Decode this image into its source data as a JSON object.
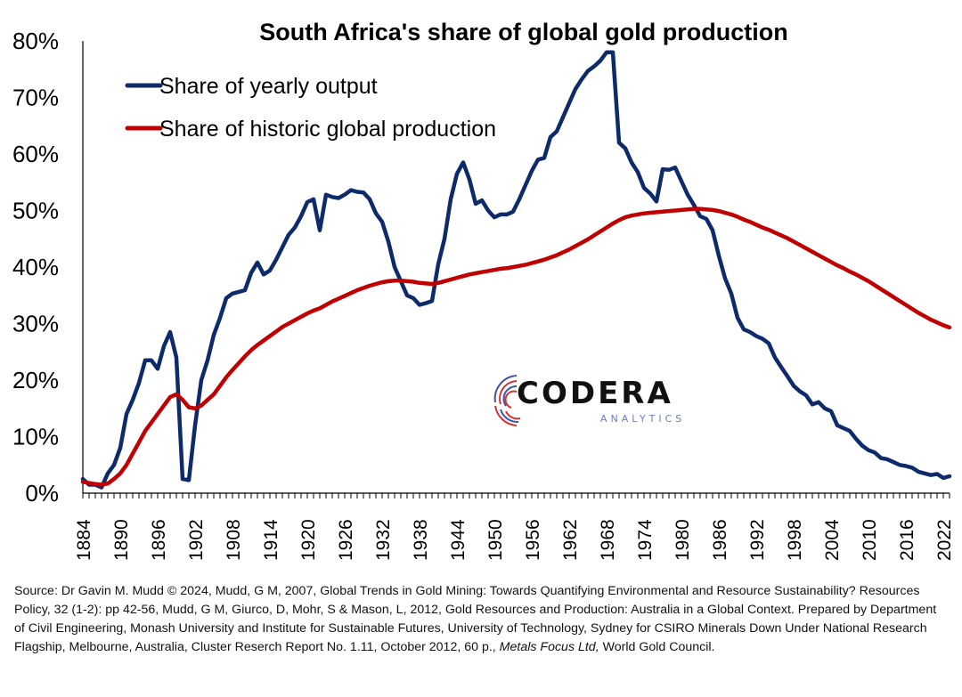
{
  "chart_data": {
    "type": "line",
    "title": "South Africa's share of global gold production",
    "y_ticks": [
      "0%",
      "10%",
      "20%",
      "30%",
      "40%",
      "50%",
      "60%",
      "70%",
      "80%"
    ],
    "ylim": [
      0,
      80
    ],
    "xlim": [
      1884,
      2023
    ],
    "x_ticks": [
      "1884",
      "1890",
      "1896",
      "1902",
      "1908",
      "1914",
      "1920",
      "1926",
      "1932",
      "1938",
      "1944",
      "1950",
      "1956",
      "1962",
      "1968",
      "1974",
      "1980",
      "1986",
      "1992",
      "1998",
      "2004",
      "2010",
      "2016",
      "2022"
    ],
    "grid": false,
    "legend_position": "top-left",
    "series": [
      {
        "name": "Share of yearly output",
        "color": "#0d2a6b",
        "points": [
          [
            1884,
            2.5
          ],
          [
            1885,
            1.5
          ],
          [
            1886,
            1.5
          ],
          [
            1887,
            1.0
          ],
          [
            1888,
            3.5
          ],
          [
            1889,
            5.0
          ],
          [
            1890,
            8.0
          ],
          [
            1891,
            14.0
          ],
          [
            1892,
            16.5
          ],
          [
            1893,
            19.5
          ],
          [
            1894,
            23.5
          ],
          [
            1895,
            23.5
          ],
          [
            1896,
            22.0
          ],
          [
            1897,
            26.0
          ],
          [
            1898,
            28.5
          ],
          [
            1899,
            24.0
          ],
          [
            1900,
            2.5
          ],
          [
            1901,
            2.3
          ],
          [
            1902,
            12.0
          ],
          [
            1903,
            20.0
          ],
          [
            1904,
            23.5
          ],
          [
            1905,
            28.0
          ],
          [
            1906,
            31.0
          ],
          [
            1907,
            34.5
          ],
          [
            1908,
            35.3
          ],
          [
            1909,
            35.6
          ],
          [
            1910,
            35.9
          ],
          [
            1911,
            39.0
          ],
          [
            1912,
            40.8
          ],
          [
            1913,
            38.7
          ],
          [
            1914,
            39.4
          ],
          [
            1915,
            41.3
          ],
          [
            1916,
            43.5
          ],
          [
            1917,
            45.7
          ],
          [
            1918,
            47.0
          ],
          [
            1919,
            49.0
          ],
          [
            1920,
            51.5
          ],
          [
            1921,
            52.0
          ],
          [
            1922,
            46.5
          ],
          [
            1923,
            52.8
          ],
          [
            1924,
            52.4
          ],
          [
            1925,
            52.2
          ],
          [
            1926,
            52.8
          ],
          [
            1927,
            53.6
          ],
          [
            1928,
            53.3
          ],
          [
            1929,
            53.2
          ],
          [
            1930,
            52.0
          ],
          [
            1931,
            49.5
          ],
          [
            1932,
            48.0
          ],
          [
            1933,
            44.5
          ],
          [
            1934,
            40.0
          ],
          [
            1935,
            37.5
          ],
          [
            1936,
            35.0
          ],
          [
            1937,
            34.5
          ],
          [
            1938,
            33.3
          ],
          [
            1939,
            33.6
          ],
          [
            1940,
            34.0
          ],
          [
            1941,
            40.5
          ],
          [
            1942,
            45.0
          ],
          [
            1943,
            52.0
          ],
          [
            1944,
            56.5
          ],
          [
            1945,
            58.5
          ],
          [
            1946,
            55.5
          ],
          [
            1947,
            51.2
          ],
          [
            1948,
            51.8
          ],
          [
            1949,
            50.0
          ],
          [
            1950,
            48.8
          ],
          [
            1951,
            49.3
          ],
          [
            1952,
            49.3
          ],
          [
            1953,
            49.8
          ],
          [
            1954,
            52.0
          ],
          [
            1955,
            54.5
          ],
          [
            1956,
            57.0
          ],
          [
            1957,
            59.0
          ],
          [
            1958,
            59.3
          ],
          [
            1959,
            63.0
          ],
          [
            1960,
            64.0
          ],
          [
            1961,
            66.5
          ],
          [
            1962,
            69.0
          ],
          [
            1963,
            71.5
          ],
          [
            1964,
            73.2
          ],
          [
            1965,
            74.7
          ],
          [
            1966,
            75.5
          ],
          [
            1967,
            76.5
          ],
          [
            1968,
            78.0
          ],
          [
            1969,
            78.0
          ],
          [
            1970,
            62.0
          ],
          [
            1971,
            61.0
          ],
          [
            1972,
            58.5
          ],
          [
            1973,
            56.8
          ],
          [
            1974,
            54.0
          ],
          [
            1975,
            53.0
          ],
          [
            1976,
            51.6
          ],
          [
            1977,
            57.3
          ],
          [
            1978,
            57.2
          ],
          [
            1979,
            57.6
          ],
          [
            1980,
            55.2
          ],
          [
            1981,
            52.8
          ],
          [
            1982,
            51.0
          ],
          [
            1983,
            49.0
          ],
          [
            1984,
            48.5
          ],
          [
            1985,
            46.5
          ],
          [
            1986,
            42.0
          ],
          [
            1987,
            38.0
          ],
          [
            1988,
            35.3
          ],
          [
            1989,
            31.0
          ],
          [
            1990,
            29.0
          ],
          [
            1991,
            28.5
          ],
          [
            1992,
            27.8
          ],
          [
            1993,
            27.3
          ],
          [
            1994,
            26.5
          ],
          [
            1995,
            24.0
          ],
          [
            1996,
            22.3
          ],
          [
            1997,
            20.7
          ],
          [
            1998,
            19.0
          ],
          [
            1999,
            18.0
          ],
          [
            2000,
            17.3
          ],
          [
            2001,
            15.7
          ],
          [
            2002,
            16.1
          ],
          [
            2003,
            15.0
          ],
          [
            2004,
            14.5
          ],
          [
            2005,
            12.0
          ],
          [
            2006,
            11.5
          ],
          [
            2007,
            11.0
          ],
          [
            2008,
            9.6
          ],
          [
            2009,
            8.4
          ],
          [
            2010,
            7.6
          ],
          [
            2011,
            7.2
          ],
          [
            2012,
            6.2
          ],
          [
            2013,
            6.0
          ],
          [
            2014,
            5.5
          ],
          [
            2015,
            5.0
          ],
          [
            2016,
            4.8
          ],
          [
            2017,
            4.5
          ],
          [
            2018,
            3.8
          ],
          [
            2019,
            3.5
          ],
          [
            2020,
            3.2
          ],
          [
            2021,
            3.4
          ],
          [
            2022,
            2.7
          ],
          [
            2023,
            3.0
          ]
        ]
      },
      {
        "name": "Share of historic global production",
        "color": "#c00000",
        "points": [
          [
            1884,
            2.0
          ],
          [
            1886,
            1.6
          ],
          [
            1887,
            1.5
          ],
          [
            1888,
            1.7
          ],
          [
            1889,
            2.5
          ],
          [
            1890,
            3.5
          ],
          [
            1891,
            5.0
          ],
          [
            1892,
            7.0
          ],
          [
            1893,
            9.0
          ],
          [
            1894,
            11.0
          ],
          [
            1895,
            12.5
          ],
          [
            1896,
            14.0
          ],
          [
            1897,
            15.5
          ],
          [
            1898,
            17.0
          ],
          [
            1899,
            17.5
          ],
          [
            1900,
            16.5
          ],
          [
            1901,
            15.2
          ],
          [
            1902,
            15.0
          ],
          [
            1903,
            15.5
          ],
          [
            1904,
            16.5
          ],
          [
            1905,
            17.5
          ],
          [
            1906,
            19.0
          ],
          [
            1907,
            20.5
          ],
          [
            1908,
            21.8
          ],
          [
            1909,
            23.0
          ],
          [
            1910,
            24.2
          ],
          [
            1911,
            25.3
          ],
          [
            1912,
            26.2
          ],
          [
            1913,
            27.0
          ],
          [
            1914,
            27.8
          ],
          [
            1915,
            28.6
          ],
          [
            1916,
            29.4
          ],
          [
            1917,
            30.0
          ],
          [
            1918,
            30.6
          ],
          [
            1919,
            31.2
          ],
          [
            1920,
            31.8
          ],
          [
            1921,
            32.3
          ],
          [
            1922,
            32.7
          ],
          [
            1923,
            33.3
          ],
          [
            1924,
            33.9
          ],
          [
            1925,
            34.4
          ],
          [
            1926,
            34.9
          ],
          [
            1927,
            35.4
          ],
          [
            1928,
            35.9
          ],
          [
            1929,
            36.3
          ],
          [
            1930,
            36.7
          ],
          [
            1931,
            37.0
          ],
          [
            1932,
            37.3
          ],
          [
            1933,
            37.5
          ],
          [
            1934,
            37.6
          ],
          [
            1935,
            37.6
          ],
          [
            1936,
            37.5
          ],
          [
            1937,
            37.4
          ],
          [
            1938,
            37.2
          ],
          [
            1939,
            37.1
          ],
          [
            1940,
            37.0
          ],
          [
            1941,
            37.2
          ],
          [
            1942,
            37.5
          ],
          [
            1943,
            37.8
          ],
          [
            1944,
            38.1
          ],
          [
            1945,
            38.4
          ],
          [
            1946,
            38.7
          ],
          [
            1947,
            38.9
          ],
          [
            1948,
            39.1
          ],
          [
            1949,
            39.3
          ],
          [
            1950,
            39.5
          ],
          [
            1951,
            39.7
          ],
          [
            1952,
            39.8
          ],
          [
            1953,
            40.0
          ],
          [
            1954,
            40.2
          ],
          [
            1955,
            40.4
          ],
          [
            1956,
            40.7
          ],
          [
            1957,
            41.0
          ],
          [
            1958,
            41.3
          ],
          [
            1959,
            41.7
          ],
          [
            1960,
            42.1
          ],
          [
            1961,
            42.6
          ],
          [
            1962,
            43.1
          ],
          [
            1963,
            43.7
          ],
          [
            1964,
            44.3
          ],
          [
            1965,
            44.9
          ],
          [
            1966,
            45.6
          ],
          [
            1967,
            46.3
          ],
          [
            1968,
            47.0
          ],
          [
            1969,
            47.7
          ],
          [
            1970,
            48.3
          ],
          [
            1971,
            48.8
          ],
          [
            1972,
            49.1
          ],
          [
            1973,
            49.3
          ],
          [
            1974,
            49.5
          ],
          [
            1975,
            49.6
          ],
          [
            1976,
            49.7
          ],
          [
            1977,
            49.8
          ],
          [
            1978,
            49.9
          ],
          [
            1979,
            50.0
          ],
          [
            1980,
            50.1
          ],
          [
            1981,
            50.2
          ],
          [
            1982,
            50.3
          ],
          [
            1983,
            50.3
          ],
          [
            1984,
            50.2
          ],
          [
            1985,
            50.1
          ],
          [
            1986,
            49.9
          ],
          [
            1987,
            49.6
          ],
          [
            1988,
            49.3
          ],
          [
            1989,
            48.9
          ],
          [
            1990,
            48.4
          ],
          [
            1991,
            48.0
          ],
          [
            1992,
            47.5
          ],
          [
            1993,
            47.0
          ],
          [
            1994,
            46.6
          ],
          [
            1995,
            46.1
          ],
          [
            1996,
            45.6
          ],
          [
            1997,
            45.1
          ],
          [
            1998,
            44.5
          ],
          [
            1999,
            43.9
          ],
          [
            2000,
            43.3
          ],
          [
            2001,
            42.7
          ],
          [
            2002,
            42.1
          ],
          [
            2003,
            41.5
          ],
          [
            2004,
            40.9
          ],
          [
            2005,
            40.3
          ],
          [
            2006,
            39.8
          ],
          [
            2007,
            39.2
          ],
          [
            2008,
            38.7
          ],
          [
            2009,
            38.1
          ],
          [
            2010,
            37.5
          ],
          [
            2011,
            36.8
          ],
          [
            2012,
            36.1
          ],
          [
            2013,
            35.4
          ],
          [
            2014,
            34.7
          ],
          [
            2015,
            34.0
          ],
          [
            2016,
            33.3
          ],
          [
            2017,
            32.6
          ],
          [
            2018,
            31.9
          ],
          [
            2019,
            31.3
          ],
          [
            2020,
            30.7
          ],
          [
            2021,
            30.2
          ],
          [
            2022,
            29.7
          ],
          [
            2023,
            29.3
          ]
        ]
      }
    ]
  },
  "logo": {
    "word": "CODERA",
    "sub": "ANALYTICS"
  },
  "source": {
    "part1": "Source: Dr Gavin M. Mudd © 2024, Mudd, G M, 2007, Global Trends in Gold Mining: Towards Quantifying Environmental and Resource Sustainability? Resources Policy, 32 (1-2): pp 42-56, Mudd, G M, Giurco, D, Mohr, S & Mason, L, 2012, Gold Resources and Production: Australia in a Global Context. Prepared by Department of Civil Engineering, Monash University and Institute for Sustainable Futures, University of Technology, Sydney for CSIRO Minerals Down Under National Research Flagship, Melbourne, Australia, Cluster Reserch Report No. 1.11, October 2012, 60 p., ",
    "italic": "Metals Focus Ltd,",
    "part2": " World Gold Council."
  }
}
